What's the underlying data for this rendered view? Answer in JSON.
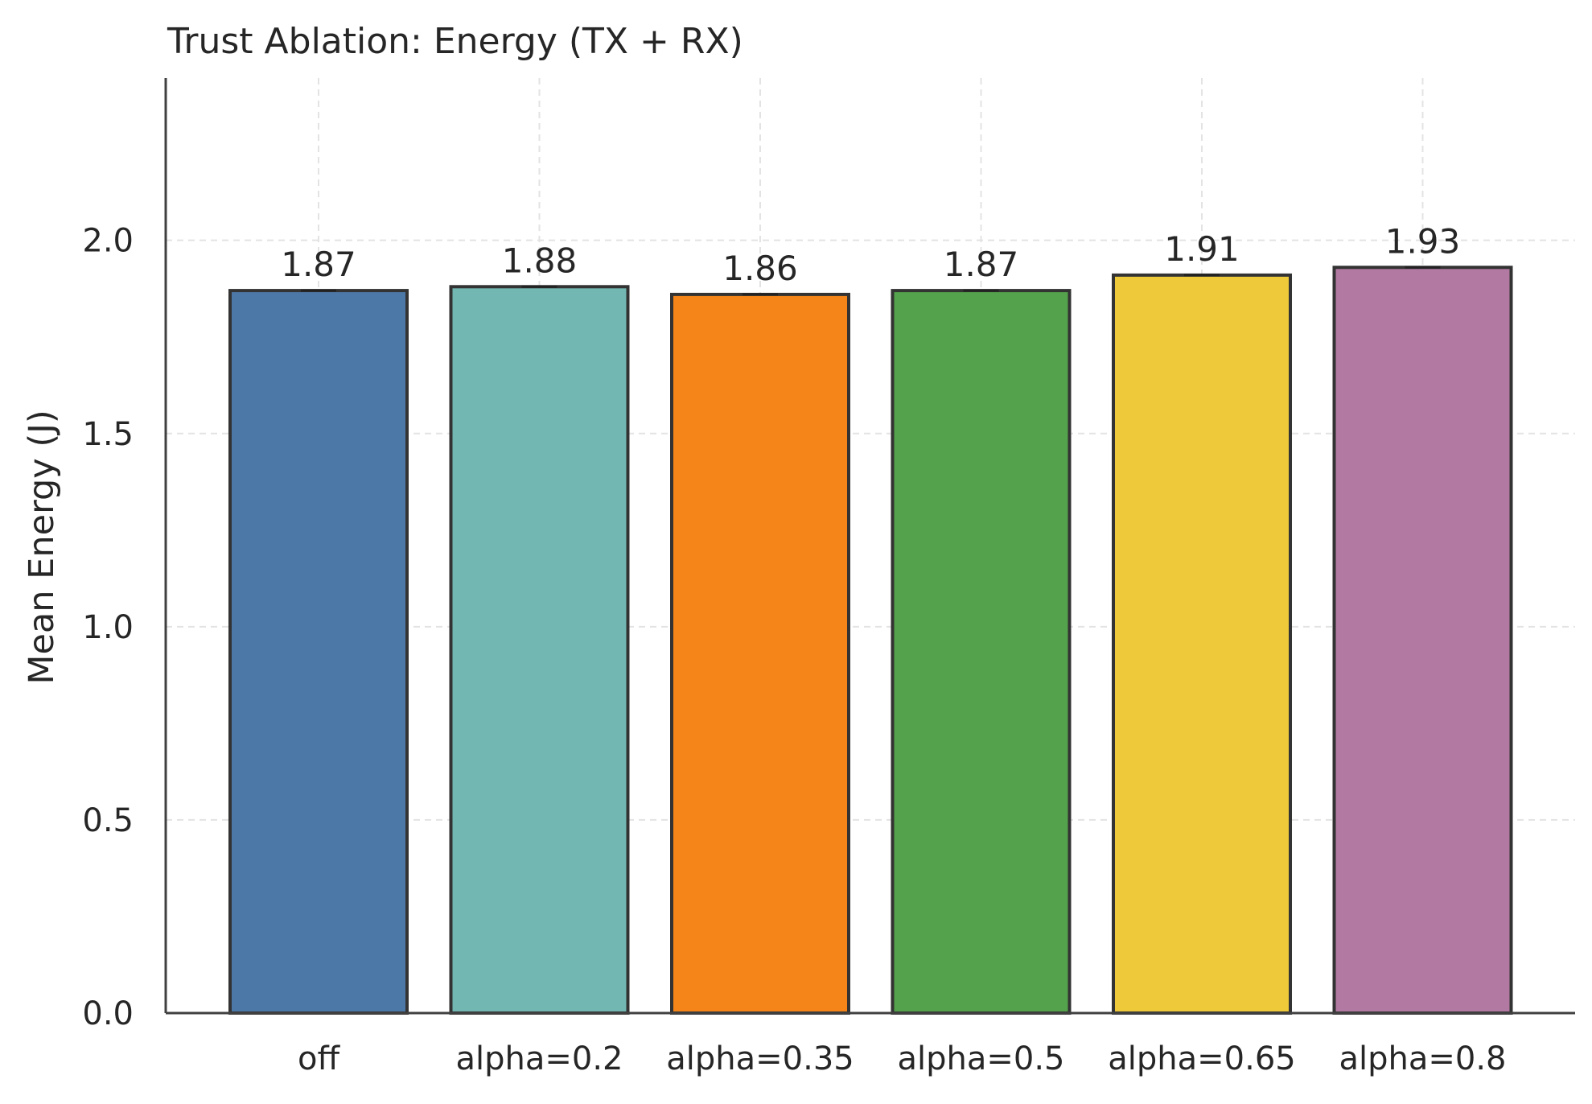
{
  "chart_data": {
    "type": "bar",
    "title": "Trust Ablation: Energy (TX + RX)",
    "xlabel": "",
    "ylabel": "Mean Energy (J)",
    "categories": [
      "off",
      "alpha=0.2",
      "alpha=0.35",
      "alpha=0.5",
      "alpha=0.65",
      "alpha=0.8"
    ],
    "values": [
      1.87,
      1.88,
      1.86,
      1.87,
      1.91,
      1.93
    ],
    "value_labels": [
      "1.87",
      "1.88",
      "1.86",
      "1.87",
      "1.91",
      "1.93"
    ],
    "colors": [
      "#4c78a8",
      "#72b7b2",
      "#f58518",
      "#54a24b",
      "#eeca3b",
      "#b279a2"
    ],
    "edge_color": "#333333",
    "ylim": [
      0,
      2.42
    ],
    "yticks": [
      0.0,
      0.5,
      1.0,
      1.5,
      2.0
    ],
    "ytick_labels": [
      "0.0",
      "0.5",
      "1.0",
      "1.5",
      "2.0"
    ],
    "grid": true,
    "legend": "none"
  }
}
